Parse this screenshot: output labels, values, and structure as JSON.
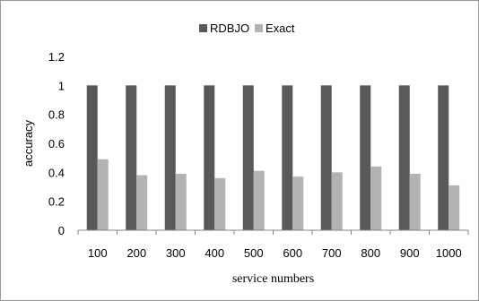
{
  "chart_data": {
    "type": "bar",
    "categories": [
      "100",
      "200",
      "300",
      "400",
      "500",
      "600",
      "700",
      "800",
      "900",
      "1000"
    ],
    "series": [
      {
        "name": "RDBJO",
        "values": [
          1,
          1,
          1,
          1,
          1,
          1,
          1,
          1,
          1,
          1
        ],
        "color": "#595959"
      },
      {
        "name": "Exact",
        "values": [
          0.49,
          0.38,
          0.39,
          0.36,
          0.41,
          0.37,
          0.4,
          0.44,
          0.39,
          0.31
        ],
        "color": "#b3b3b3"
      }
    ],
    "xlabel": "service numbers",
    "ylabel": "accuracy",
    "ylim": [
      0,
      1.2
    ],
    "yticks": [
      "0",
      "0.2",
      "0.4",
      "0.6",
      "0.8",
      "1",
      "1.2"
    ],
    "grid": false,
    "legend_position": "top-center"
  }
}
